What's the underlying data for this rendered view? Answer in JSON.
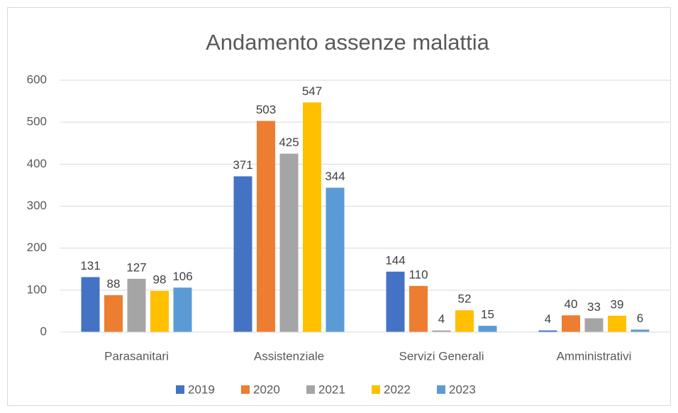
{
  "chart_data": {
    "type": "bar",
    "title": "Andamento assenze malattia",
    "categories": [
      "Parasanitari",
      "Assistenziale",
      "Servizi Generali",
      "Amministrativi"
    ],
    "series": [
      {
        "name": "2019",
        "color": "#4472c4",
        "values": [
          131,
          371,
          144,
          4
        ]
      },
      {
        "name": "2020",
        "color": "#ed7d31",
        "values": [
          88,
          503,
          110,
          40
        ]
      },
      {
        "name": "2021",
        "color": "#a5a5a5",
        "values": [
          127,
          425,
          4,
          33
        ]
      },
      {
        "name": "2022",
        "color": "#ffc000",
        "values": [
          98,
          547,
          52,
          39
        ]
      },
      {
        "name": "2023",
        "color": "#5b9bd5",
        "values": [
          106,
          344,
          15,
          6
        ]
      }
    ],
    "ylim": [
      0,
      600
    ],
    "yticks": [
      0,
      100,
      200,
      300,
      400,
      500,
      600
    ],
    "grid": true,
    "legend": "bottom"
  }
}
